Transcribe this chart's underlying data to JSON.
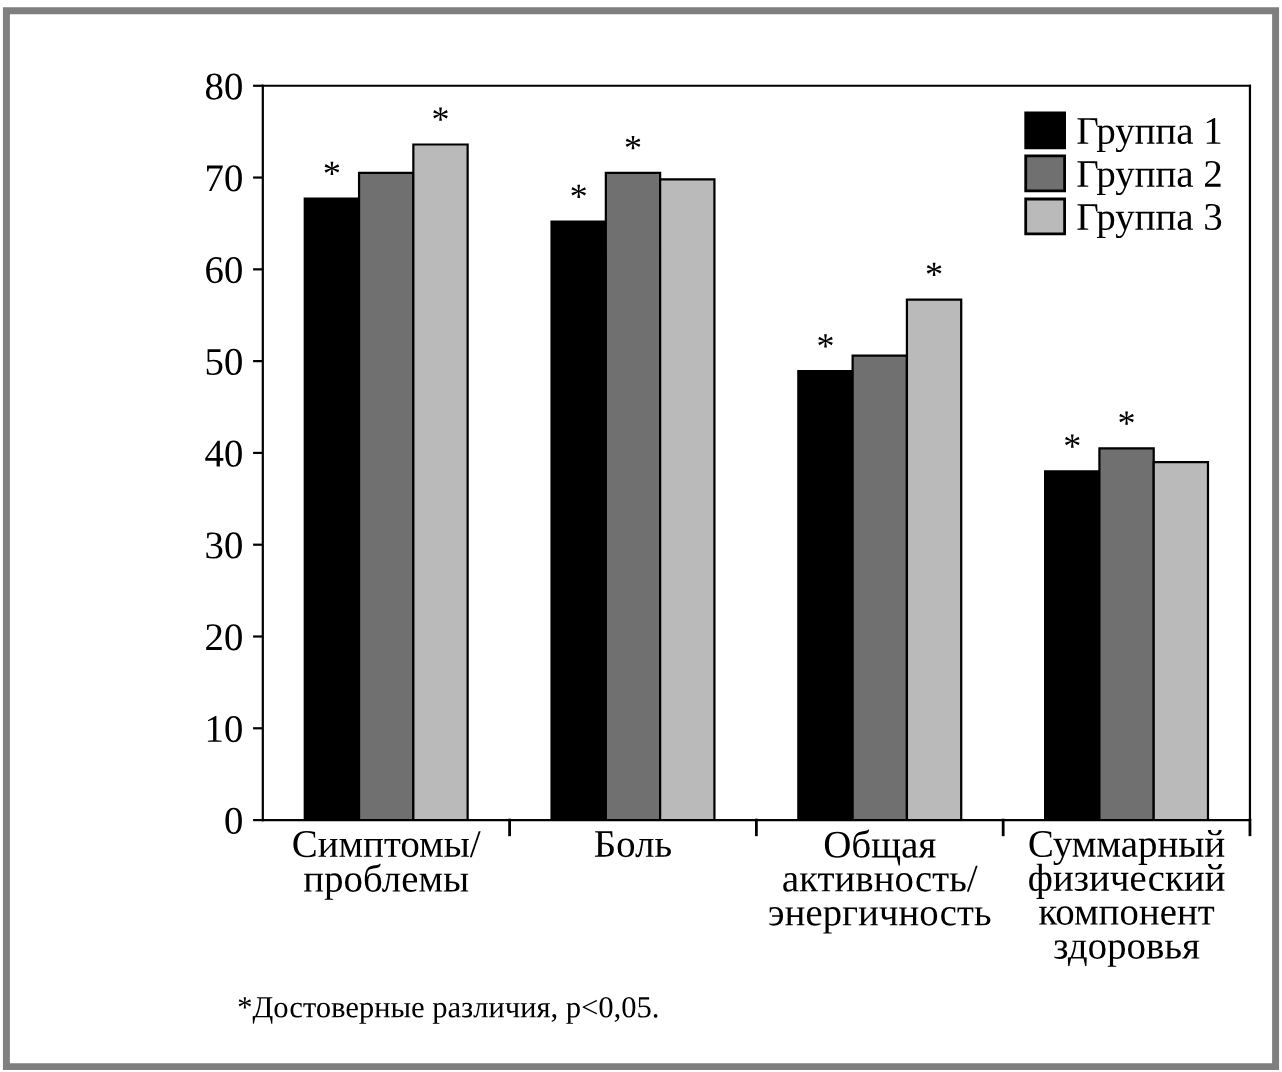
{
  "chart_data": {
    "type": "bar",
    "categories": [
      "Симптомы/\nпроблемы",
      "Боль",
      "Общая\nактивность/\nэнергичность",
      "Суммарный\nфизический\nкомпонент\nздоровья"
    ],
    "series": [
      {
        "name": "Группа 1",
        "color": "#000000",
        "values": [
          67.7,
          65.2,
          48.9,
          38.0
        ],
        "value_labels": [
          "*",
          "*",
          "*",
          "*"
        ]
      },
      {
        "name": "Группа 2",
        "color": "#707070",
        "values": [
          70.5,
          70.5,
          50.6,
          40.5
        ],
        "value_labels": [
          null,
          "*",
          null,
          "*"
        ]
      },
      {
        "name": "Группа 3",
        "color": "#bababa",
        "values": [
          73.6,
          69.8,
          56.7,
          39.0
        ],
        "value_labels": [
          "*",
          null,
          "*",
          null
        ]
      }
    ],
    "ylim": [
      0,
      80
    ],
    "yticks": [
      0,
      10,
      20,
      30,
      40,
      50,
      60,
      70,
      80
    ],
    "grid": false,
    "legend": "top right",
    "annotations": [
      "*Достоверные различия, p<0,05."
    ]
  }
}
